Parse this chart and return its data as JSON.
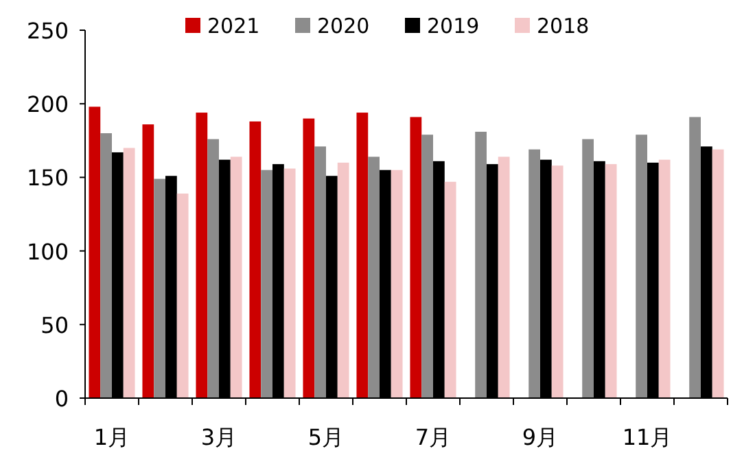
{
  "chart_data": {
    "type": "bar",
    "categories": [
      "1月",
      null,
      "3月",
      null,
      "5月",
      null,
      "7月",
      null,
      "9月",
      null,
      "11月",
      null
    ],
    "series": [
      {
        "name": "2021",
        "color": "#cc0000",
        "values": [
          198,
          186,
          194,
          188,
          190,
          194,
          191,
          null,
          null,
          null,
          null,
          null
        ]
      },
      {
        "name": "2020",
        "color": "#8c8c8c",
        "values": [
          180,
          149,
          176,
          155,
          171,
          164,
          179,
          181,
          169,
          176,
          179,
          191
        ]
      },
      {
        "name": "2019",
        "color": "#000000",
        "values": [
          167,
          151,
          162,
          159,
          151,
          155,
          161,
          159,
          162,
          161,
          160,
          171
        ]
      },
      {
        "name": "2018",
        "color": "#f4c7c8",
        "values": [
          170,
          139,
          164,
          156,
          160,
          155,
          147,
          164,
          158,
          159,
          162,
          169
        ]
      }
    ],
    "ylim": [
      0,
      250
    ],
    "yticks": [
      0,
      50,
      100,
      150,
      200,
      250
    ],
    "legend": "top",
    "grid": false
  }
}
